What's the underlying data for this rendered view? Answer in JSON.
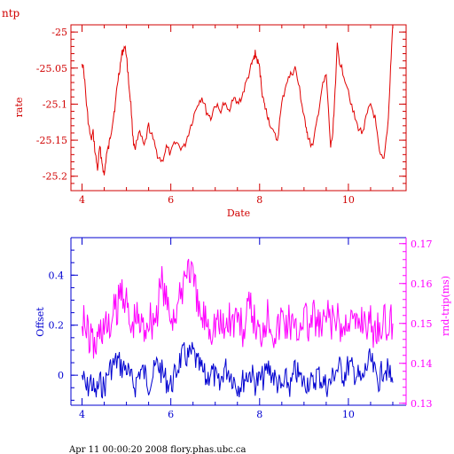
{
  "page": {
    "corner_label": "ntp",
    "footer": "Apr 11 00:00:20 2008 flory.phas.ubc.ca"
  },
  "chart_data": [
    {
      "type": "line",
      "xlabel": "Date",
      "ylabel": "rate",
      "xlim": [
        3.75,
        11.3
      ],
      "ylim": [
        -25.22,
        -24.99
      ],
      "xticks": [
        4,
        6,
        8,
        10
      ],
      "yticks": [
        -25,
        -25.05,
        -25.1,
        -25.15,
        -25.2
      ],
      "color": "#e00000",
      "series": [
        {
          "x": [
            4.0,
            4.05,
            4.1,
            4.15,
            4.2,
            4.25,
            4.3,
            4.35,
            4.4,
            4.45,
            4.5,
            4.55,
            4.6,
            4.65,
            4.7,
            4.75,
            4.8,
            4.85,
            4.9,
            4.95,
            5.0,
            5.05,
            5.1,
            5.15,
            5.2,
            5.3,
            5.4,
            5.5,
            5.6,
            5.7,
            5.8,
            5.9,
            6.0,
            6.1,
            6.2,
            6.3,
            6.4,
            6.5,
            6.6,
            6.7,
            6.8,
            6.9,
            7.0,
            7.1,
            7.2,
            7.3,
            7.4,
            7.5,
            7.6,
            7.7,
            7.8,
            7.85,
            7.9,
            7.95,
            8.0,
            8.05,
            8.1,
            8.15,
            8.2,
            8.3,
            8.4,
            8.5,
            8.6,
            8.7,
            8.8,
            8.9,
            8.95,
            9.0,
            9.05,
            9.1,
            9.2,
            9.3,
            9.4,
            9.5,
            9.6,
            9.65,
            9.7,
            9.75,
            9.8,
            9.9,
            10.0,
            10.1,
            10.2,
            10.3,
            10.4,
            10.5,
            10.6,
            10.7,
            10.8,
            10.9,
            10.95,
            11.0
          ],
          "y": [
            -25.04,
            -25.06,
            -25.1,
            -25.13,
            -25.15,
            -25.14,
            -25.17,
            -25.19,
            -25.16,
            -25.18,
            -25.2,
            -25.17,
            -25.16,
            -25.14,
            -25.12,
            -25.1,
            -25.07,
            -25.05,
            -25.03,
            -25.02,
            -25.03,
            -25.07,
            -25.1,
            -25.15,
            -25.16,
            -25.14,
            -25.16,
            -25.13,
            -25.15,
            -25.17,
            -25.18,
            -25.16,
            -25.17,
            -25.15,
            -25.16,
            -25.16,
            -25.14,
            -25.12,
            -25.1,
            -25.09,
            -25.11,
            -25.12,
            -25.1,
            -25.11,
            -25.1,
            -25.11,
            -25.09,
            -25.1,
            -25.09,
            -25.07,
            -25.05,
            -25.04,
            -25.03,
            -25.04,
            -25.05,
            -25.08,
            -25.1,
            -25.11,
            -25.12,
            -25.14,
            -25.15,
            -25.1,
            -25.07,
            -25.06,
            -25.05,
            -25.08,
            -25.1,
            -25.12,
            -25.13,
            -25.15,
            -25.16,
            -25.12,
            -25.08,
            -25.06,
            -25.16,
            -25.14,
            -25.08,
            -25.02,
            -25.04,
            -25.06,
            -25.08,
            -25.11,
            -25.13,
            -25.14,
            -25.12,
            -25.1,
            -25.12,
            -25.17,
            -25.18,
            -25.12,
            -25.05,
            -24.99
          ]
        }
      ]
    },
    {
      "type": "line",
      "xlim": [
        3.75,
        11.3
      ],
      "xticks": [
        4,
        6,
        8,
        10
      ],
      "y_left": {
        "label": "Offset",
        "ylim": [
          -0.12,
          0.55
        ],
        "ticks": [
          0,
          0.2,
          0.4
        ],
        "color": "#0000d0"
      },
      "y_right": {
        "label": "rnd-trip(ms)",
        "ylim": [
          0.1295,
          0.1715
        ],
        "ticks": [
          0.13,
          0.14,
          0.15,
          0.16,
          0.17
        ],
        "color": "#ff00ff"
      },
      "series": [
        {
          "axis": "left",
          "color": "#0000d0",
          "x": [
            4.0,
            4.1,
            4.2,
            4.3,
            4.4,
            4.5,
            4.6,
            4.7,
            4.8,
            4.9,
            5.0,
            5.1,
            5.2,
            5.3,
            5.4,
            5.5,
            5.6,
            5.7,
            5.8,
            5.9,
            6.0,
            6.1,
            6.2,
            6.3,
            6.4,
            6.5,
            6.6,
            6.7,
            6.8,
            6.9,
            7.0,
            7.1,
            7.2,
            7.3,
            7.4,
            7.5,
            7.6,
            7.7,
            7.8,
            7.9,
            8.0,
            8.1,
            8.2,
            8.3,
            8.4,
            8.5,
            8.6,
            8.7,
            8.8,
            8.9,
            9.0,
            9.1,
            9.2,
            9.3,
            9.4,
            9.5,
            9.6,
            9.7,
            9.8,
            9.9,
            10.0,
            10.1,
            10.2,
            10.3,
            10.4,
            10.5,
            10.6,
            10.7,
            10.8,
            10.9,
            11.0
          ],
          "y": [
            0.0,
            -0.06,
            -0.02,
            -0.08,
            -0.03,
            -0.05,
            0.02,
            0.04,
            0.06,
            0.03,
            0.03,
            -0.02,
            -0.04,
            0.02,
            0.01,
            -0.03,
            0.0,
            0.05,
            0.01,
            -0.02,
            -0.04,
            0.0,
            0.06,
            0.08,
            0.07,
            0.09,
            0.04,
            0.02,
            -0.02,
            0.02,
            -0.01,
            -0.05,
            0.03,
            0.02,
            -0.01,
            -0.04,
            -0.03,
            0.0,
            0.01,
            -0.03,
            -0.02,
            -0.01,
            0.03,
            0.0,
            -0.03,
            -0.06,
            -0.02,
            -0.05,
            0.02,
            -0.01,
            -0.03,
            -0.02,
            -0.04,
            0.01,
            -0.02,
            -0.04,
            -0.03,
            0.02,
            0.03,
            0.0,
            0.04,
            0.02,
            0.0,
            -0.03,
            0.03,
            0.06,
            0.0,
            -0.02,
            0.04,
            0.01,
            -0.03
          ]
        },
        {
          "axis": "right",
          "color": "#ff00ff",
          "x": [
            4.0,
            4.1,
            4.2,
            4.3,
            4.4,
            4.5,
            4.6,
            4.7,
            4.8,
            4.9,
            5.0,
            5.1,
            5.2,
            5.3,
            5.4,
            5.5,
            5.6,
            5.7,
            5.8,
            5.9,
            6.0,
            6.1,
            6.2,
            6.3,
            6.4,
            6.5,
            6.6,
            6.7,
            6.8,
            6.9,
            7.0,
            7.1,
            7.2,
            7.3,
            7.4,
            7.5,
            7.6,
            7.7,
            7.8,
            7.9,
            8.0,
            8.1,
            8.2,
            8.3,
            8.4,
            8.5,
            8.6,
            8.7,
            8.8,
            8.9,
            9.0,
            9.1,
            9.2,
            9.3,
            9.4,
            9.5,
            9.6,
            9.7,
            9.8,
            9.9,
            10.0,
            10.1,
            10.2,
            10.3,
            10.4,
            10.5,
            10.6,
            10.7,
            10.8,
            10.9,
            11.0
          ],
          "y": [
            0.153,
            0.148,
            0.146,
            0.144,
            0.148,
            0.15,
            0.148,
            0.152,
            0.154,
            0.16,
            0.155,
            0.148,
            0.152,
            0.15,
            0.149,
            0.152,
            0.151,
            0.153,
            0.161,
            0.155,
            0.152,
            0.153,
            0.155,
            0.162,
            0.165,
            0.161,
            0.154,
            0.151,
            0.152,
            0.149,
            0.151,
            0.15,
            0.148,
            0.152,
            0.15,
            0.153,
            0.148,
            0.151,
            0.154,
            0.15,
            0.147,
            0.151,
            0.153,
            0.149,
            0.148,
            0.152,
            0.15,
            0.151,
            0.147,
            0.15,
            0.153,
            0.149,
            0.151,
            0.15,
            0.148,
            0.152,
            0.15,
            0.151,
            0.149,
            0.148,
            0.153,
            0.15,
            0.149,
            0.152,
            0.151,
            0.15,
            0.148,
            0.151,
            0.15,
            0.149,
            0.15
          ]
        }
      ]
    }
  ]
}
